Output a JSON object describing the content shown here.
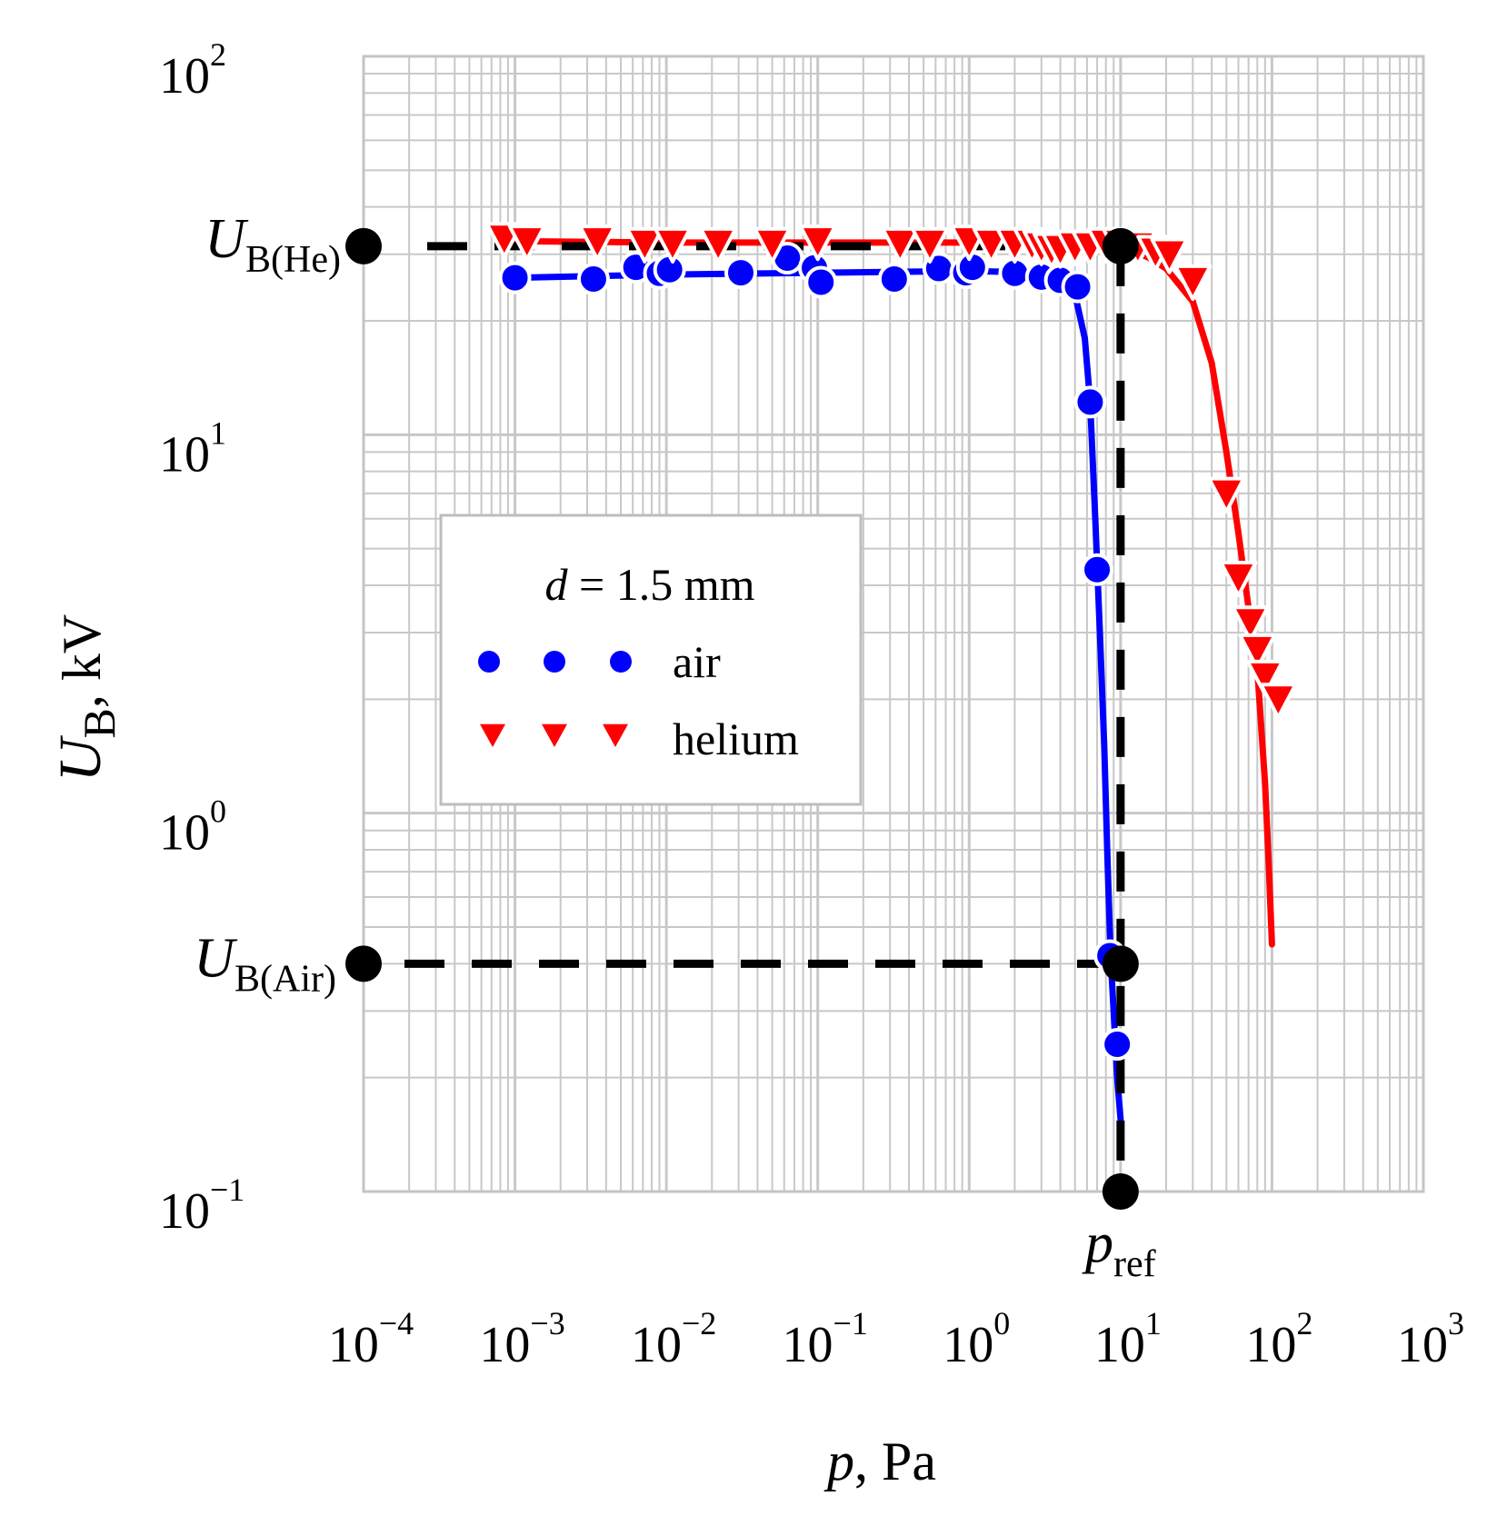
{
  "chart_data": {
    "type": "scatter",
    "xlabel": {
      "var": "p",
      "unit": ", Pa"
    },
    "ylabel": {
      "var": "U",
      "sub": "B",
      "unit": ", kV"
    },
    "x_scale": "log",
    "y_scale": "log",
    "xlim": [
      0.0001,
      1000
    ],
    "ylim": [
      0.1,
      100
    ],
    "x_ticks": [
      {
        "value": 0.0001,
        "base": "10",
        "exp": "−4"
      },
      {
        "value": 0.001,
        "base": "10",
        "exp": "−3"
      },
      {
        "value": 0.01,
        "base": "10",
        "exp": "−2"
      },
      {
        "value": 0.1,
        "base": "10",
        "exp": "−1"
      },
      {
        "value": 1,
        "base": "10",
        "exp": "0"
      },
      {
        "value": 10,
        "base": "10",
        "exp": "1"
      },
      {
        "value": 100,
        "base": "10",
        "exp": "2"
      },
      {
        "value": 1000,
        "base": "10",
        "exp": "3"
      }
    ],
    "y_ticks": [
      {
        "value": 100,
        "base": "10",
        "exp": "2"
      },
      {
        "value": 10,
        "base": "10",
        "exp": "1"
      },
      {
        "value": 1,
        "base": "10",
        "exp": "0"
      },
      {
        "value": 0.1,
        "base": "10",
        "exp": "−1"
      }
    ],
    "grid": true,
    "legend": {
      "placement": "center-left",
      "title": {
        "var": "d",
        "rest": " = 1.5 mm"
      }
    },
    "series": [
      {
        "name": "air",
        "marker": "circle",
        "color": "#0000ff",
        "points": [
          [
            0.001,
            26.0
          ],
          [
            0.0033,
            25.8
          ],
          [
            0.0063,
            27.7
          ],
          [
            0.009,
            26.7
          ],
          [
            0.0105,
            27.3
          ],
          [
            0.031,
            26.8
          ],
          [
            0.063,
            29.3
          ],
          [
            0.095,
            27.6
          ],
          [
            0.105,
            25.3
          ],
          [
            0.32,
            25.8
          ],
          [
            0.63,
            27.5
          ],
          [
            0.95,
            26.8
          ],
          [
            1.05,
            27.7
          ],
          [
            2.0,
            26.7
          ],
          [
            3.0,
            26.1
          ],
          [
            4.0,
            25.6
          ],
          [
            5.2,
            24.6
          ],
          [
            6.3,
            12.2
          ],
          [
            7.0,
            4.4
          ],
          [
            8.5,
            0.42
          ],
          [
            9.5,
            0.245
          ]
        ],
        "fit": [
          [
            0.001,
            26.0
          ],
          [
            0.01,
            26.5
          ],
          [
            0.1,
            26.8
          ],
          [
            1.0,
            27.1
          ],
          [
            2.0,
            26.9
          ],
          [
            3.0,
            26.5
          ],
          [
            4.0,
            25.8
          ],
          [
            5.0,
            23.5
          ],
          [
            5.8,
            18.0
          ],
          [
            6.3,
            12.2
          ],
          [
            6.8,
            6.0
          ],
          [
            7.3,
            3.0
          ],
          [
            7.8,
            1.5
          ],
          [
            8.2,
            0.75
          ],
          [
            8.6,
            0.42
          ],
          [
            9.0,
            0.3
          ],
          [
            9.5,
            0.2
          ],
          [
            10.0,
            0.155
          ]
        ]
      },
      {
        "name": "helium",
        "marker": "triangle-down",
        "color": "#ff0000",
        "points": [
          [
            0.00085,
            33.0
          ],
          [
            0.0012,
            32.5
          ],
          [
            0.0035,
            32.5
          ],
          [
            0.0072,
            32.0
          ],
          [
            0.011,
            32.0
          ],
          [
            0.022,
            32.0
          ],
          [
            0.05,
            32.0
          ],
          [
            0.1,
            32.5
          ],
          [
            0.35,
            32.0
          ],
          [
            0.55,
            32.0
          ],
          [
            1.0,
            32.5
          ],
          [
            1.4,
            32.0
          ],
          [
            2.0,
            32.0
          ],
          [
            2.6,
            32.0
          ],
          [
            3.0,
            31.5
          ],
          [
            3.5,
            31.0
          ],
          [
            4.0,
            31.0
          ],
          [
            5.0,
            31.5
          ],
          [
            6.3,
            31.5
          ],
          [
            8.0,
            32.0
          ],
          [
            10.0,
            32.0
          ],
          [
            13.0,
            31.5
          ],
          [
            17.0,
            30.5
          ],
          [
            21.0,
            30.0
          ],
          [
            30.0,
            25.5
          ],
          [
            50.0,
            7.0
          ],
          [
            60.0,
            4.2
          ],
          [
            72.0,
            3.2
          ],
          [
            80.0,
            2.7
          ],
          [
            90.0,
            2.3
          ],
          [
            110.0,
            2.0
          ]
        ],
        "fit": [
          [
            0.00085,
            32.5
          ],
          [
            0.01,
            32.2
          ],
          [
            0.1,
            32.2
          ],
          [
            1.0,
            32.2
          ],
          [
            5.0,
            31.8
          ],
          [
            10.0,
            31.3
          ],
          [
            15.0,
            29.5
          ],
          [
            20.0,
            27.5
          ],
          [
            30.0,
            22.5
          ],
          [
            40.0,
            15.5
          ],
          [
            50.0,
            9.0
          ],
          [
            60.0,
            5.5
          ],
          [
            70.0,
            3.5
          ],
          [
            80.0,
            2.4
          ],
          [
            90.0,
            1.2
          ],
          [
            95.0,
            0.75
          ],
          [
            100.0,
            0.45
          ]
        ]
      }
    ],
    "reference_lines": {
      "ub_he": {
        "y": 31.5,
        "label": {
          "var": "U",
          "sub": "B(He)"
        }
      },
      "ub_air": {
        "y": 0.4,
        "label": {
          "var": "U",
          "sub": "B(Air)"
        }
      },
      "p_ref": {
        "x": 10,
        "label": {
          "var": "p",
          "sub": "ref"
        }
      }
    }
  }
}
